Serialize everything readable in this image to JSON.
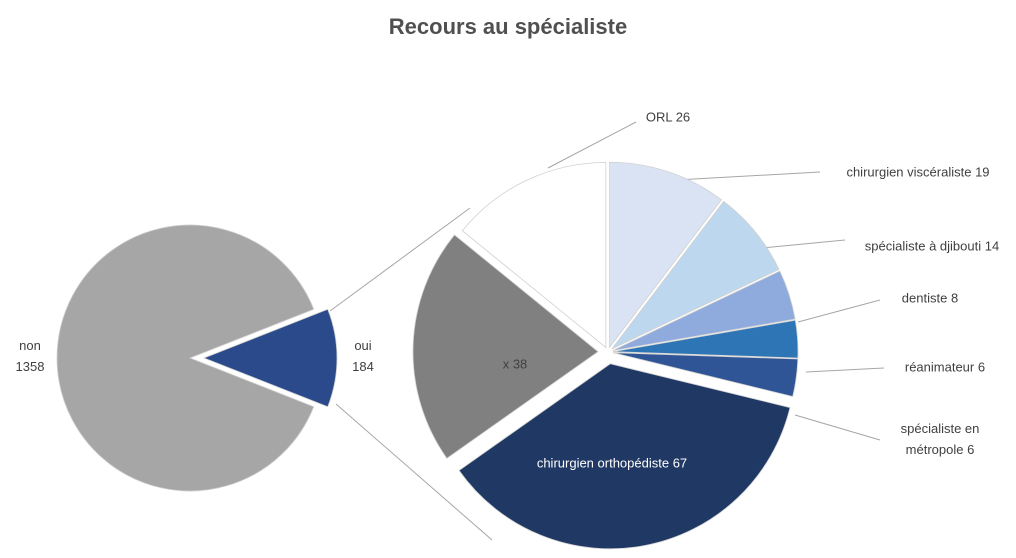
{
  "chart_data": [
    {
      "type": "pie",
      "title": "Recours au spécialiste",
      "categories": [
        "non",
        "oui"
      ],
      "values": [
        1358,
        184
      ],
      "colors": [
        "#a6a6a6",
        "#2a4a8c"
      ]
    },
    {
      "type": "pie",
      "categories": [
        "chirurgien viscéraliste",
        "spécialiste à djibouti",
        "dentiste",
        "réanimateur",
        "spécialiste en métropole",
        "chirurgien orthopédiste",
        "x",
        "ORL"
      ],
      "values": [
        19,
        14,
        8,
        6,
        6,
        67,
        38,
        26
      ],
      "colors": [
        "#dae3f3",
        "#bdd7ee",
        "#8faadc",
        "#2e75b6",
        "#2f5597",
        "#203864",
        "#808080",
        "#ffffff"
      ]
    }
  ]
}
